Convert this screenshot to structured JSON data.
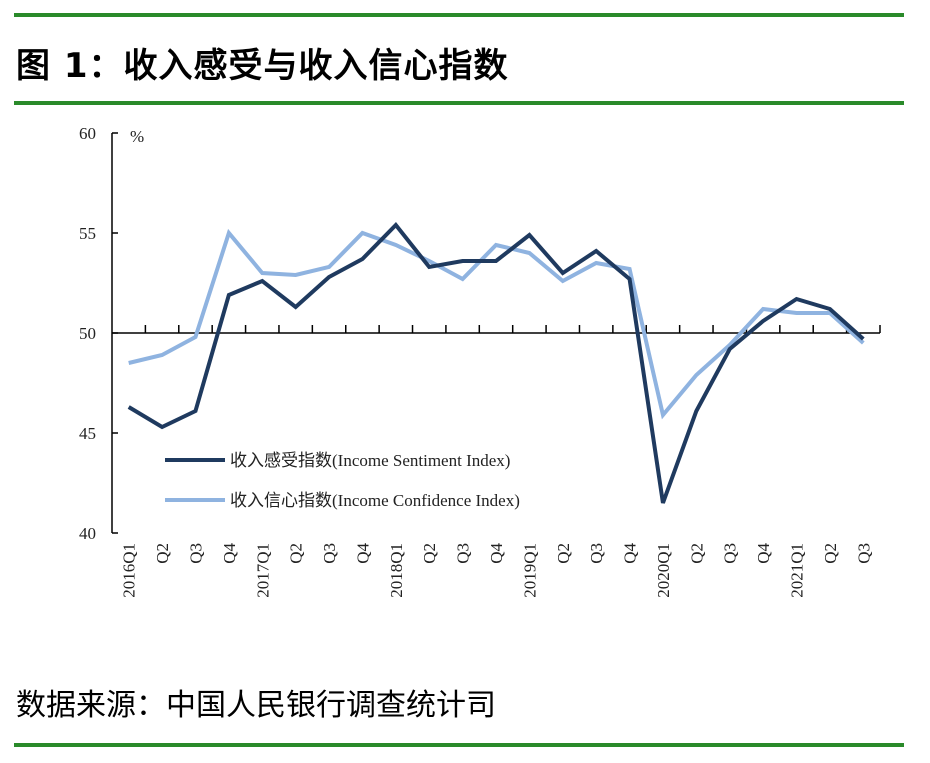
{
  "title": "图 1：收入感受与收入信心指数",
  "source": "数据来源：中国人民银行调查统计司",
  "colors": {
    "sentiment": "#1f3a5f",
    "confidence": "#8fb3e0",
    "rule": "#2a8a2a"
  },
  "chart_data": {
    "type": "line",
    "ylabel": "%",
    "ylim": [
      40,
      60
    ],
    "yticks": [
      "40",
      "45",
      "50",
      "55",
      "60"
    ],
    "baseline": 50,
    "categories": [
      "2016Q1",
      "Q2",
      "Q3",
      "Q4",
      "2017Q1",
      "Q2",
      "Q3",
      "Q4",
      "2018Q1",
      "Q2",
      "Q3",
      "Q4",
      "2019Q1",
      "Q2",
      "Q3",
      "Q4",
      "2020Q1",
      "Q2",
      "Q3",
      "Q4",
      "2021Q1",
      "Q2",
      "Q3"
    ],
    "series": [
      {
        "name": "收入感受指数(Income Sentiment Index)",
        "values": [
          46.3,
          45.3,
          46.1,
          51.9,
          52.6,
          51.3,
          52.8,
          53.7,
          55.4,
          53.3,
          53.6,
          53.6,
          54.9,
          53.0,
          54.1,
          52.7,
          41.5,
          46.1,
          49.2,
          50.6,
          51.7,
          51.2,
          49.7
        ]
      },
      {
        "name": "收入信心指数(Income Confidence Index)",
        "values": [
          48.5,
          48.9,
          49.8,
          55.0,
          53.0,
          52.9,
          53.3,
          55.0,
          54.4,
          53.6,
          52.7,
          54.4,
          54.0,
          52.6,
          53.5,
          53.2,
          45.9,
          47.9,
          49.4,
          51.2,
          51.0,
          51.0,
          49.5
        ]
      }
    ],
    "legend": "bottom-left inside"
  }
}
